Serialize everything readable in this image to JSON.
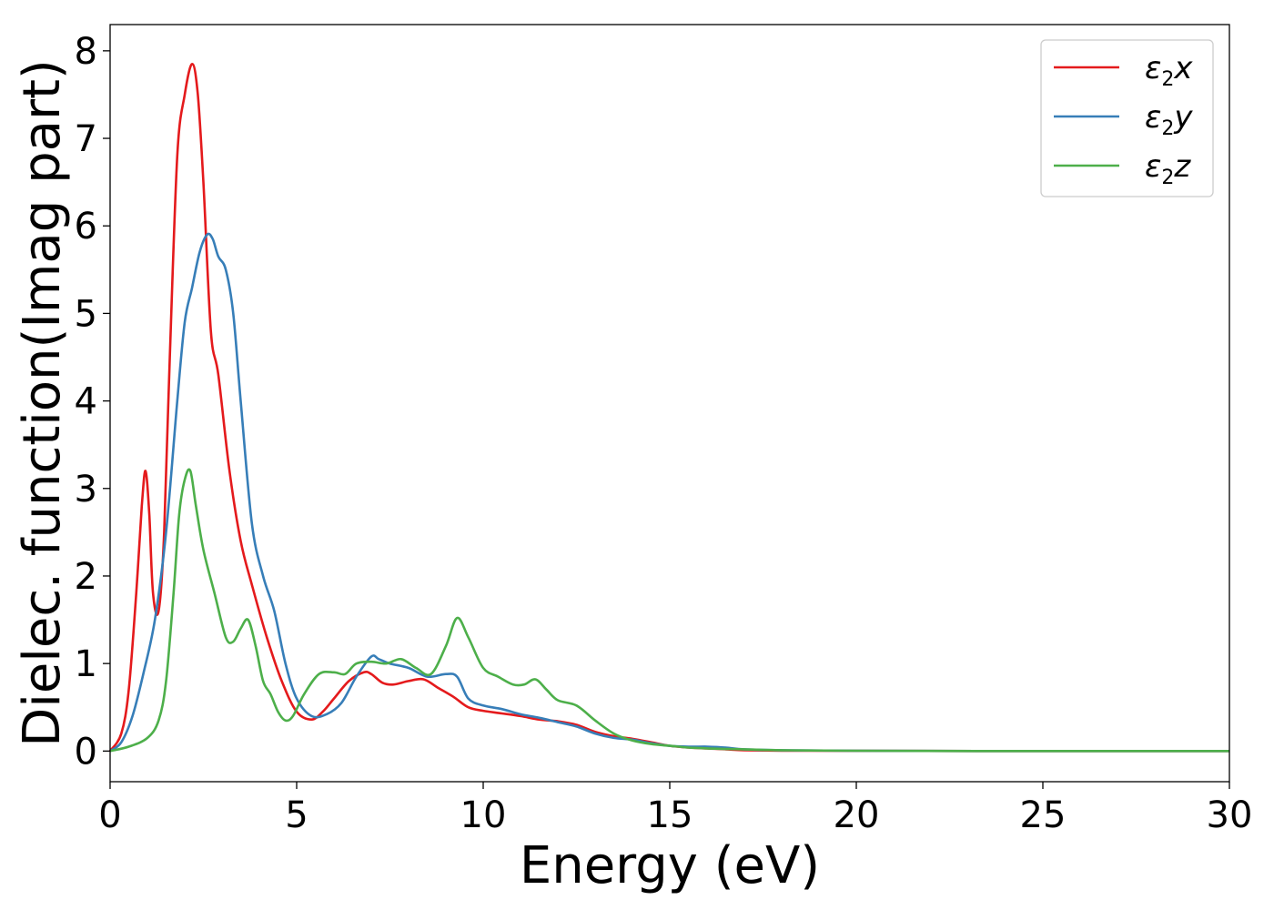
{
  "chart_data": {
    "type": "line",
    "xlabel": "Energy (eV)",
    "ylabel": "Dielec. function(Imag part)",
    "xlim": [
      0,
      30
    ],
    "ylim": [
      -0.35,
      8.3
    ],
    "xticks": [
      "0",
      "5",
      "10",
      "15",
      "20",
      "25",
      "30"
    ],
    "yticks": [
      "0",
      "1",
      "2",
      "3",
      "4",
      "5",
      "6",
      "7",
      "8"
    ],
    "grid": false,
    "legend_position": "top-right",
    "series": [
      {
        "name": "ε2x",
        "legend_base": "ε",
        "legend_sub": "2",
        "legend_tail": "x",
        "color": "#e41a1c",
        "x": [
          0,
          0.3,
          0.5,
          0.7,
          0.85,
          0.95,
          1.05,
          1.15,
          1.3,
          1.45,
          1.6,
          1.8,
          2.0,
          2.2,
          2.35,
          2.5,
          2.7,
          2.9,
          3.2,
          3.5,
          3.8,
          4.2,
          4.6,
          5.0,
          5.4,
          5.7,
          6.0,
          6.4,
          6.8,
          7.0,
          7.3,
          7.6,
          8.0,
          8.4,
          8.8,
          9.2,
          9.6,
          10.0,
          10.5,
          11.0,
          11.5,
          12.0,
          12.5,
          13.0,
          13.5,
          14.0,
          14.5,
          15.0,
          15.5,
          16.0,
          16.5,
          17.0,
          18.0,
          20.0,
          25.0,
          30.0
        ],
        "y": [
          0,
          0.2,
          0.7,
          1.8,
          2.8,
          3.2,
          2.7,
          1.8,
          1.6,
          2.5,
          4.5,
          6.8,
          7.5,
          7.85,
          7.5,
          6.5,
          4.8,
          4.3,
          3.2,
          2.4,
          1.9,
          1.3,
          0.8,
          0.45,
          0.36,
          0.45,
          0.6,
          0.8,
          0.9,
          0.88,
          0.78,
          0.76,
          0.8,
          0.82,
          0.72,
          0.62,
          0.5,
          0.46,
          0.43,
          0.4,
          0.36,
          0.34,
          0.3,
          0.22,
          0.17,
          0.14,
          0.1,
          0.06,
          0.04,
          0.03,
          0.02,
          0.01,
          0.005,
          0.002,
          0,
          0
        ]
      },
      {
        "name": "ε2y",
        "legend_base": "ε",
        "legend_sub": "2",
        "legend_tail": "y",
        "color": "#377eb8",
        "x": [
          0,
          0.3,
          0.6,
          0.9,
          1.2,
          1.5,
          1.8,
          2.0,
          2.2,
          2.4,
          2.6,
          2.75,
          2.9,
          3.1,
          3.3,
          3.5,
          3.8,
          4.1,
          4.4,
          4.7,
          5.0,
          5.4,
          5.8,
          6.2,
          6.6,
          7.0,
          7.2,
          7.5,
          8.0,
          8.5,
          9.0,
          9.3,
          9.6,
          10.0,
          10.5,
          11.0,
          11.5,
          12.0,
          12.5,
          13.0,
          13.5,
          14.0,
          14.5,
          15.0,
          15.5,
          16.0,
          16.5,
          17.0,
          18.0,
          20.0,
          25.0,
          30.0
        ],
        "y": [
          0,
          0.1,
          0.4,
          0.9,
          1.5,
          2.5,
          4.0,
          4.9,
          5.3,
          5.7,
          5.9,
          5.85,
          5.65,
          5.5,
          5.0,
          4.0,
          2.6,
          2.0,
          1.6,
          1.0,
          0.6,
          0.4,
          0.42,
          0.55,
          0.85,
          1.08,
          1.05,
          1.0,
          0.95,
          0.85,
          0.88,
          0.85,
          0.6,
          0.52,
          0.48,
          0.42,
          0.38,
          0.33,
          0.28,
          0.2,
          0.15,
          0.13,
          0.09,
          0.06,
          0.05,
          0.05,
          0.04,
          0.02,
          0.01,
          0.003,
          0,
          0
        ]
      },
      {
        "name": "ε2z",
        "legend_base": "ε",
        "legend_sub": "2",
        "legend_tail": "z",
        "color": "#4daf4a",
        "x": [
          0,
          0.5,
          1.0,
          1.3,
          1.5,
          1.7,
          1.85,
          2.0,
          2.15,
          2.3,
          2.5,
          2.8,
          3.1,
          3.3,
          3.5,
          3.7,
          3.9,
          4.1,
          4.3,
          4.5,
          4.7,
          4.9,
          5.2,
          5.6,
          6.0,
          6.3,
          6.6,
          7.0,
          7.4,
          7.8,
          8.2,
          8.6,
          9.0,
          9.3,
          9.6,
          10.0,
          10.4,
          10.8,
          11.1,
          11.4,
          11.7,
          12.0,
          12.5,
          13.0,
          13.5,
          14.0,
          14.5,
          15.0,
          15.5,
          16.0,
          17.0,
          18.0,
          20.0,
          25.0,
          30.0
        ],
        "y": [
          0,
          0.05,
          0.15,
          0.35,
          0.8,
          1.8,
          2.7,
          3.1,
          3.2,
          2.8,
          2.3,
          1.8,
          1.3,
          1.25,
          1.4,
          1.5,
          1.2,
          0.8,
          0.65,
          0.45,
          0.35,
          0.4,
          0.65,
          0.88,
          0.9,
          0.88,
          1.0,
          1.02,
          1.0,
          1.05,
          0.95,
          0.88,
          1.2,
          1.52,
          1.3,
          0.95,
          0.85,
          0.76,
          0.76,
          0.82,
          0.7,
          0.58,
          0.52,
          0.35,
          0.2,
          0.12,
          0.08,
          0.06,
          0.04,
          0.03,
          0.02,
          0.01,
          0.003,
          0,
          0
        ]
      }
    ]
  }
}
